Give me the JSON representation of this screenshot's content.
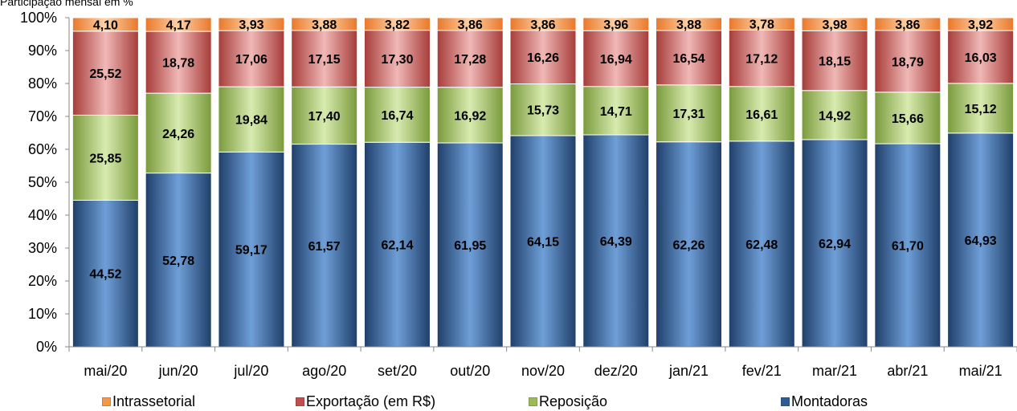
{
  "chart_data": {
    "type": "bar",
    "stacked": true,
    "title": "Participação mensal em %",
    "categories": [
      "mai/20",
      "jun/20",
      "jul/20",
      "ago/20",
      "set/20",
      "out/20",
      "nov/20",
      "dez/20",
      "jan/21",
      "fev/21",
      "mar/21",
      "abr/21",
      "mai/21"
    ],
    "y_ticks": [
      "0%",
      "10%",
      "20%",
      "30%",
      "40%",
      "50%",
      "60%",
      "70%",
      "80%",
      "90%",
      "100%"
    ],
    "ylim": [
      0,
      100
    ],
    "series": [
      {
        "name": "Montadoras",
        "color": "#2e5c96",
        "values": [
          44.52,
          52.78,
          59.17,
          61.57,
          62.14,
          61.95,
          64.15,
          64.39,
          62.26,
          62.48,
          62.94,
          61.7,
          64.93
        ],
        "labels": [
          "44,52",
          "52,78",
          "59,17",
          "61,57",
          "62,14",
          "61,95",
          "64,15",
          "64,39",
          "62,26",
          "62,48",
          "62,94",
          "61,70",
          "64,93"
        ]
      },
      {
        "name": "Reposição",
        "color": "#9bbb59",
        "values": [
          25.85,
          24.26,
          19.84,
          17.4,
          16.74,
          16.92,
          15.73,
          14.71,
          17.31,
          16.61,
          14.92,
          15.66,
          15.12
        ],
        "labels": [
          "25,85",
          "24,26",
          "19,84",
          "17,40",
          "16,74",
          "16,92",
          "15,73",
          "14,71",
          "17,31",
          "16,61",
          "14,92",
          "15,66",
          "15,12"
        ]
      },
      {
        "name": "Exportação (em R$)",
        "color": "#c0504d",
        "values": [
          25.52,
          18.78,
          17.06,
          17.15,
          17.3,
          17.28,
          16.26,
          16.94,
          16.54,
          17.12,
          18.15,
          18.79,
          16.03
        ],
        "labels": [
          "25,52",
          "18,78",
          "17,06",
          "17,15",
          "17,30",
          "17,28",
          "16,26",
          "16,94",
          "16,54",
          "17,12",
          "18,15",
          "18,79",
          "16,03"
        ]
      },
      {
        "name": "Intrassetorial",
        "color": "#f79646",
        "values": [
          4.1,
          4.17,
          3.93,
          3.88,
          3.82,
          3.86,
          3.86,
          3.96,
          3.88,
          3.78,
          3.98,
          3.86,
          3.92
        ],
        "labels": [
          "4,10",
          "4,17",
          "3,93",
          "3,88",
          "3,82",
          "3,86",
          "3,86",
          "3,96",
          "3,88",
          "3,78",
          "3,98",
          "3,86",
          "3,92"
        ]
      }
    ],
    "legend": {
      "position": "bottom",
      "order": [
        "Intrassetorial",
        "Exportação (em R$)",
        "Reposição",
        "Montadoras"
      ]
    },
    "grid": false
  }
}
